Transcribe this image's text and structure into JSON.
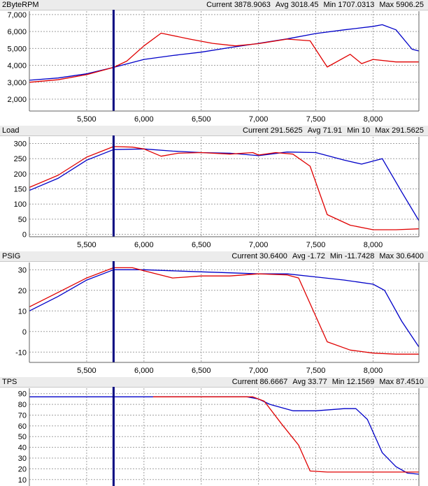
{
  "colors": {
    "series_a": "#0000c8",
    "series_b": "#e00000",
    "cursor": "#000080",
    "grid": "#a0a0a0",
    "frame": "#606060"
  },
  "cursor_x": 5735,
  "panels": [
    {
      "title": "2ByteRPM",
      "stats": {
        "current_label": "Current",
        "current": "3878.9063",
        "avg_label": "Avg",
        "avg": "3018.45",
        "min_label": "Min",
        "min": "1707.0313",
        "max_label": "Max",
        "max": "5906.25"
      }
    },
    {
      "title": "Load",
      "stats": {
        "current_label": "Current",
        "current": "291.5625",
        "avg_label": "Avg",
        "avg": "71.91",
        "min_label": "Min",
        "min": "10",
        "max_label": "Max",
        "max": "291.5625"
      }
    },
    {
      "title": "PSIG",
      "stats": {
        "current_label": "Current",
        "current": "30.6400",
        "avg_label": "Avg",
        "avg": "-1.72",
        "min_label": "Min",
        "min": "-11.7428",
        "max_label": "Max",
        "max": "30.6400"
      }
    },
    {
      "title": "TPS",
      "stats": {
        "current_label": "Current",
        "current": "86.6667",
        "avg_label": "Avg",
        "avg": "33.77",
        "min_label": "Min",
        "min": "12.1569",
        "max_label": "Max",
        "max": "87.4510"
      }
    }
  ],
  "chart_data": [
    {
      "type": "line",
      "title": "2ByteRPM",
      "xlim": [
        5000,
        8400
      ],
      "x_ticks": [
        5500,
        6000,
        6500,
        7000,
        7500,
        8000
      ],
      "x_tick_labels": [
        "5,500",
        "6,000",
        "6,500",
        "7,000",
        "7,500",
        "8,000"
      ],
      "ylim": [
        1300,
        7200
      ],
      "y_ticks": [
        2000,
        3000,
        4000,
        5000,
        6000,
        7000
      ],
      "y_tick_labels": [
        "2,000",
        "3,000",
        "4,000",
        "5,000",
        "6,000",
        "7,000"
      ],
      "grid": true,
      "series": [
        {
          "x": [
            5000,
            5250,
            5500,
            5735,
            6000,
            6250,
            6500,
            6750,
            7000,
            7250,
            7500,
            7750,
            8000,
            8080,
            8200,
            8340,
            8400
          ],
          "y": [
            3120,
            3250,
            3500,
            3880,
            4350,
            4580,
            4780,
            5050,
            5300,
            5560,
            5880,
            6100,
            6300,
            6400,
            6100,
            4950,
            4850
          ]
        },
        {
          "x": [
            5000,
            5250,
            5500,
            5735,
            5850,
            6000,
            6150,
            6400,
            6600,
            6800,
            7000,
            7250,
            7450,
            7600,
            7800,
            7900,
            8000,
            8200,
            8400
          ],
          "y": [
            3000,
            3150,
            3450,
            3880,
            4250,
            5150,
            5900,
            5550,
            5300,
            5150,
            5280,
            5550,
            5450,
            3900,
            4650,
            4100,
            4350,
            4200,
            4200
          ]
        }
      ]
    },
    {
      "type": "line",
      "title": "Load",
      "xlim": [
        5000,
        8400
      ],
      "x_ticks": [
        5500,
        6000,
        6500,
        7000,
        7500,
        8000
      ],
      "x_tick_labels": [
        "5,500",
        "6,000",
        "6,500",
        "7,000",
        "7,500",
        "8,000"
      ],
      "ylim": [
        -8,
        322
      ],
      "y_ticks": [
        0,
        50,
        100,
        150,
        200,
        250,
        300
      ],
      "y_tick_labels": [
        "0",
        "50",
        "100",
        "150",
        "200",
        "250",
        "300"
      ],
      "grid": true,
      "series": [
        {
          "x": [
            5000,
            5250,
            5500,
            5735,
            6000,
            6250,
            6500,
            6750,
            7000,
            7250,
            7500,
            7750,
            7900,
            8080,
            8250,
            8400
          ],
          "y": [
            145,
            185,
            245,
            280,
            282,
            275,
            270,
            268,
            260,
            272,
            270,
            245,
            232,
            250,
            140,
            45
          ]
        },
        {
          "x": [
            5000,
            5250,
            5500,
            5735,
            5900,
            6000,
            6150,
            6300,
            6500,
            6750,
            6950,
            7000,
            7150,
            7300,
            7450,
            7600,
            7800,
            8000,
            8200,
            8400
          ],
          "y": [
            155,
            195,
            255,
            290,
            288,
            282,
            258,
            268,
            270,
            265,
            270,
            262,
            270,
            265,
            225,
            65,
            30,
            15,
            15,
            18
          ]
        }
      ]
    },
    {
      "type": "line",
      "title": "PSIG",
      "xlim": [
        5000,
        8400
      ],
      "x_ticks": [
        5500,
        6000,
        6500,
        7000,
        7500,
        8000
      ],
      "x_tick_labels": [
        "5,500",
        "6,000",
        "6,500",
        "7,000",
        "7,500",
        "8,000"
      ],
      "ylim": [
        -15,
        33.5
      ],
      "y_ticks": [
        -10,
        0,
        10,
        20,
        30
      ],
      "y_tick_labels": [
        "-10",
        "0",
        "10",
        "20",
        "30"
      ],
      "grid": true,
      "series": [
        {
          "x": [
            5000,
            5250,
            5500,
            5735,
            6000,
            6250,
            6500,
            6750,
            7000,
            7250,
            7500,
            7750,
            8000,
            8100,
            8250,
            8400
          ],
          "y": [
            10,
            17,
            25,
            30,
            30,
            29.5,
            29,
            28.5,
            28,
            28,
            26.5,
            25,
            23,
            20,
            5,
            -7.5
          ]
        },
        {
          "x": [
            5000,
            5250,
            5500,
            5735,
            5900,
            6000,
            6250,
            6500,
            6750,
            7000,
            7250,
            7350,
            7600,
            7800,
            8000,
            8200,
            8400
          ],
          "y": [
            12,
            19,
            26,
            31,
            31,
            29.5,
            26,
            27,
            27,
            28,
            27.5,
            26,
            -5,
            -9,
            -10.5,
            -11,
            -11
          ]
        }
      ]
    },
    {
      "type": "line",
      "title": "TPS",
      "xlim": [
        5000,
        8400
      ],
      "x_ticks": [],
      "x_tick_labels": [],
      "ylim": [
        4,
        95
      ],
      "y_ticks": [
        10,
        20,
        30,
        40,
        50,
        60,
        70,
        80,
        90
      ],
      "y_tick_labels": [
        "10",
        "20",
        "30",
        "40",
        "50",
        "60",
        "70",
        "80",
        "90"
      ],
      "grid": true,
      "series": [
        {
          "x": [
            5000,
            5250,
            5500,
            5735,
            6000,
            6500,
            6900,
            7000,
            7100,
            7300,
            7500,
            7750,
            7850,
            7950,
            8080,
            8200,
            8300,
            8400
          ],
          "y": [
            87,
            87,
            87,
            87,
            87,
            87,
            87,
            85,
            80,
            74,
            74,
            76,
            76,
            66,
            35,
            22,
            16,
            15
          ]
        },
        {
          "x": [
            6080,
            6500,
            6950,
            7050,
            7200,
            7350,
            7450,
            7600,
            8000,
            8400
          ],
          "y": [
            87,
            87,
            87,
            83,
            62,
            42,
            18,
            17,
            17,
            17
          ]
        }
      ]
    }
  ]
}
